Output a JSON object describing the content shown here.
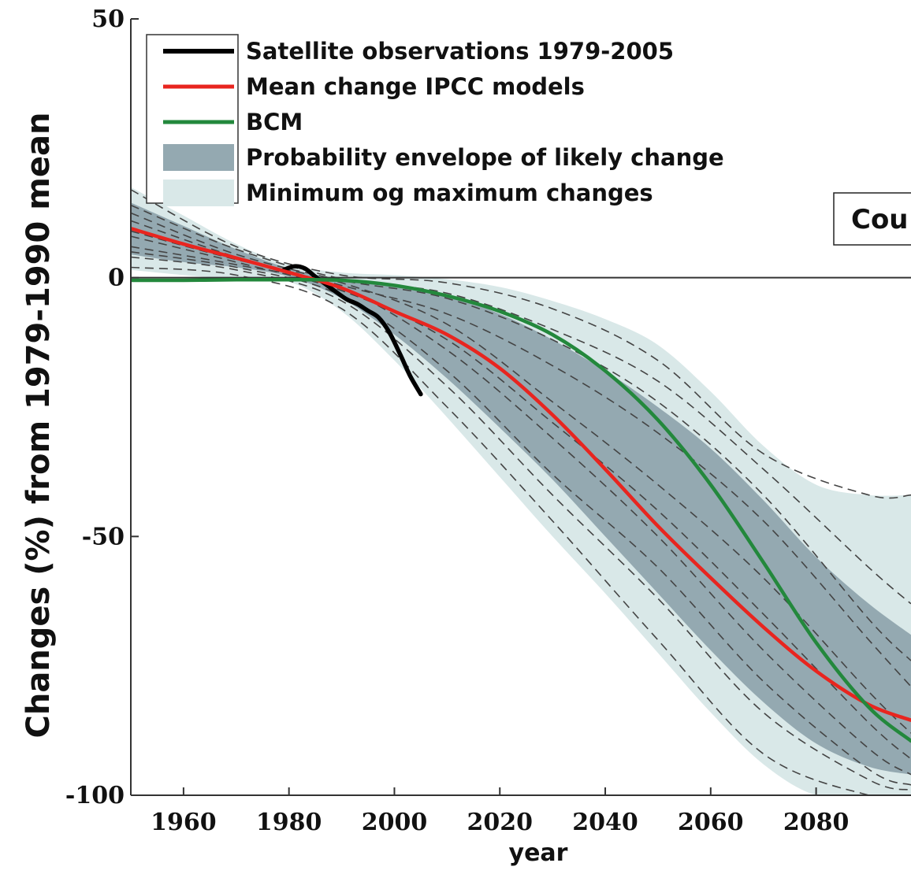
{
  "chart_data": {
    "type": "line",
    "xlabel": "year",
    "ylabel": "Changes (%) from 1979-1990 mean",
    "xlim": [
      1950,
      2098
    ],
    "ylim": [
      -100,
      50
    ],
    "x_ticks": [
      1960,
      1980,
      2000,
      2020,
      2040,
      2060,
      2080
    ],
    "y_ticks": [
      50,
      0,
      -50,
      -100
    ],
    "y_tick_labels": [
      "50",
      "0",
      "-50",
      "-100"
    ],
    "zero_line": true,
    "grid": false,
    "legend_position": "top-left",
    "annotation_box": "Cou",
    "colors": {
      "satellite": "#000000",
      "mean": "#e8251f",
      "bcm": "#23883c",
      "envelope": "#94a9b1",
      "minmax": "#d9e8e8",
      "models": "#444444"
    },
    "legend": [
      {
        "label": "Satellite observations 1979-2005",
        "kind": "line",
        "color": "#000000"
      },
      {
        "label": "Mean change IPCC models",
        "kind": "line",
        "color": "#e8251f"
      },
      {
        "label": "BCM",
        "kind": "line",
        "color": "#23883c"
      },
      {
        "label": "Probability envelope of likely change",
        "kind": "patch",
        "color": "#94a9b1"
      },
      {
        "label": "Minimum og maximum changes",
        "kind": "patch",
        "color": "#d9e8e8"
      }
    ],
    "series": [
      {
        "name": "Satellite observations 1979-2005",
        "role": "satellite",
        "x": [
          1979,
          1981,
          1983,
          1985,
          1987,
          1989,
          1991,
          1993,
          1995,
          1997,
          1999,
          2001,
          2003,
          2005
        ],
        "y": [
          1.5,
          2.2,
          1.8,
          0.2,
          -1.3,
          -2.8,
          -4.2,
          -5.1,
          -6.4,
          -7.7,
          -10.5,
          -14.6,
          -19.0,
          -22.5
        ]
      },
      {
        "name": "Mean change IPCC models",
        "role": "mean",
        "x": [
          1950,
          1960,
          1970,
          1980,
          1990,
          2000,
          2010,
          2020,
          2030,
          2040,
          2050,
          2060,
          2070,
          2080,
          2090,
          2098
        ],
        "y": [
          9.5,
          6.5,
          3.8,
          1.0,
          -2.0,
          -6.5,
          -11.0,
          -17.5,
          -26.5,
          -37.0,
          -48.0,
          -58.0,
          -67.5,
          -76.0,
          -82.5,
          -85.5
        ]
      },
      {
        "name": "BCM",
        "role": "bcm",
        "x": [
          1950,
          1960,
          1970,
          1980,
          1990,
          2000,
          2010,
          2020,
          2030,
          2040,
          2050,
          2060,
          2070,
          2080,
          2090,
          2098
        ],
        "y": [
          -0.5,
          -0.5,
          -0.4,
          -0.4,
          -0.5,
          -1.5,
          -3.5,
          -6.5,
          -11.0,
          -18.0,
          -27.5,
          -40.0,
          -55.0,
          -70.5,
          -83.0,
          -89.5
        ]
      }
    ],
    "envelope": {
      "x": [
        1950,
        1960,
        1970,
        1980,
        1990,
        2000,
        2010,
        2020,
        2030,
        2040,
        2050,
        2060,
        2070,
        2080,
        2090,
        2098
      ],
      "upper": [
        14.5,
        10.0,
        5.5,
        1.8,
        -0.3,
        -1.5,
        -3.5,
        -7.0,
        -12.0,
        -18.0,
        -25.0,
        -33.0,
        -43.0,
        -54.0,
        -63.0,
        -69.0
      ],
      "lower": [
        4.5,
        3.0,
        2.0,
        0.2,
        -4.0,
        -11.0,
        -19.5,
        -29.0,
        -39.0,
        -50.0,
        -61.0,
        -72.0,
        -82.0,
        -90.0,
        -94.5,
        -96.0
      ]
    },
    "minmax": {
      "x": [
        1950,
        1960,
        1970,
        1980,
        1990,
        2000,
        2010,
        2020,
        2030,
        2040,
        2050,
        2060,
        2070,
        2080,
        2090,
        2098
      ],
      "upper": [
        17.5,
        12.0,
        6.5,
        2.5,
        1.0,
        0.5,
        -0.3,
        -1.8,
        -4.5,
        -8.0,
        -13.0,
        -22.0,
        -32.5,
        -40.0,
        -42.0,
        -42.0
      ],
      "lower": [
        1.5,
        0.5,
        -0.3,
        -0.8,
        -6.5,
        -16.0,
        -27.0,
        -38.5,
        -50.0,
        -61.0,
        -72.5,
        -84.0,
        -94.0,
        -100.0,
        -100.0,
        -100.0
      ]
    },
    "model_runs": [
      {
        "x": [
          1950,
          1970,
          1990,
          2010,
          2030,
          2050,
          2070,
          2090,
          2098
        ],
        "y": [
          17.0,
          6.0,
          0.5,
          -1.0,
          -6.0,
          -16.0,
          -34.0,
          -42.0,
          -42.0
        ]
      },
      {
        "x": [
          1950,
          1970,
          1990,
          2010,
          2030,
          2050,
          2070,
          2090,
          2098
        ],
        "y": [
          14.0,
          5.5,
          -0.2,
          -3.0,
          -10.0,
          -20.0,
          -37.0,
          -56.0,
          -63.0
        ]
      },
      {
        "x": [
          1950,
          1970,
          1990,
          2010,
          2030,
          2050,
          2070,
          2090,
          2098
        ],
        "y": [
          12.5,
          4.5,
          -0.5,
          -4.0,
          -12.0,
          -24.0,
          -42.0,
          -66.0,
          -74.0
        ]
      },
      {
        "x": [
          1950,
          1970,
          1990,
          2010,
          2030,
          2050,
          2070,
          2090,
          2098
        ],
        "y": [
          11.0,
          4.0,
          -1.5,
          -7.0,
          -17.0,
          -30.0,
          -47.0,
          -70.0,
          -79.0
        ]
      },
      {
        "x": [
          1950,
          1970,
          1990,
          2010,
          2030,
          2050,
          2070,
          2090,
          2098
        ],
        "y": [
          9.0,
          3.5,
          -1.0,
          -9.0,
          -24.0,
          -40.0,
          -58.0,
          -80.0,
          -88.0
        ]
      },
      {
        "x": [
          1950,
          1970,
          1990,
          2010,
          2030,
          2050,
          2070,
          2090,
          2098
        ],
        "y": [
          8.0,
          3.0,
          -2.5,
          -12.0,
          -28.0,
          -45.0,
          -65.0,
          -86.0,
          -93.0
        ]
      },
      {
        "x": [
          1950,
          1970,
          1990,
          2010,
          2030,
          2050,
          2070,
          2090,
          2098
        ],
        "y": [
          6.0,
          2.5,
          -2.0,
          -14.0,
          -31.0,
          -50.0,
          -72.0,
          -91.0,
          -96.0
        ]
      },
      {
        "x": [
          1950,
          1970,
          1990,
          2010,
          2030,
          2050,
          2070,
          2090,
          2098
        ],
        "y": [
          5.0,
          2.0,
          -3.5,
          -18.0,
          -38.0,
          -56.0,
          -78.0,
          -95.0,
          -98.0
        ]
      },
      {
        "x": [
          1950,
          1970,
          1990,
          2010,
          2030,
          2050,
          2070,
          2090,
          2098
        ],
        "y": [
          4.0,
          1.5,
          -4.5,
          -21.0,
          -42.0,
          -62.0,
          -84.0,
          -97.0,
          -99.0
        ]
      },
      {
        "x": [
          1950,
          1970,
          1990,
          2010,
          2030,
          2050,
          2070,
          2090,
          2098
        ],
        "y": [
          2.0,
          0.5,
          -6.0,
          -25.0,
          -47.0,
          -70.0,
          -92.0,
          -100.0,
          -100.0
        ]
      }
    ]
  }
}
